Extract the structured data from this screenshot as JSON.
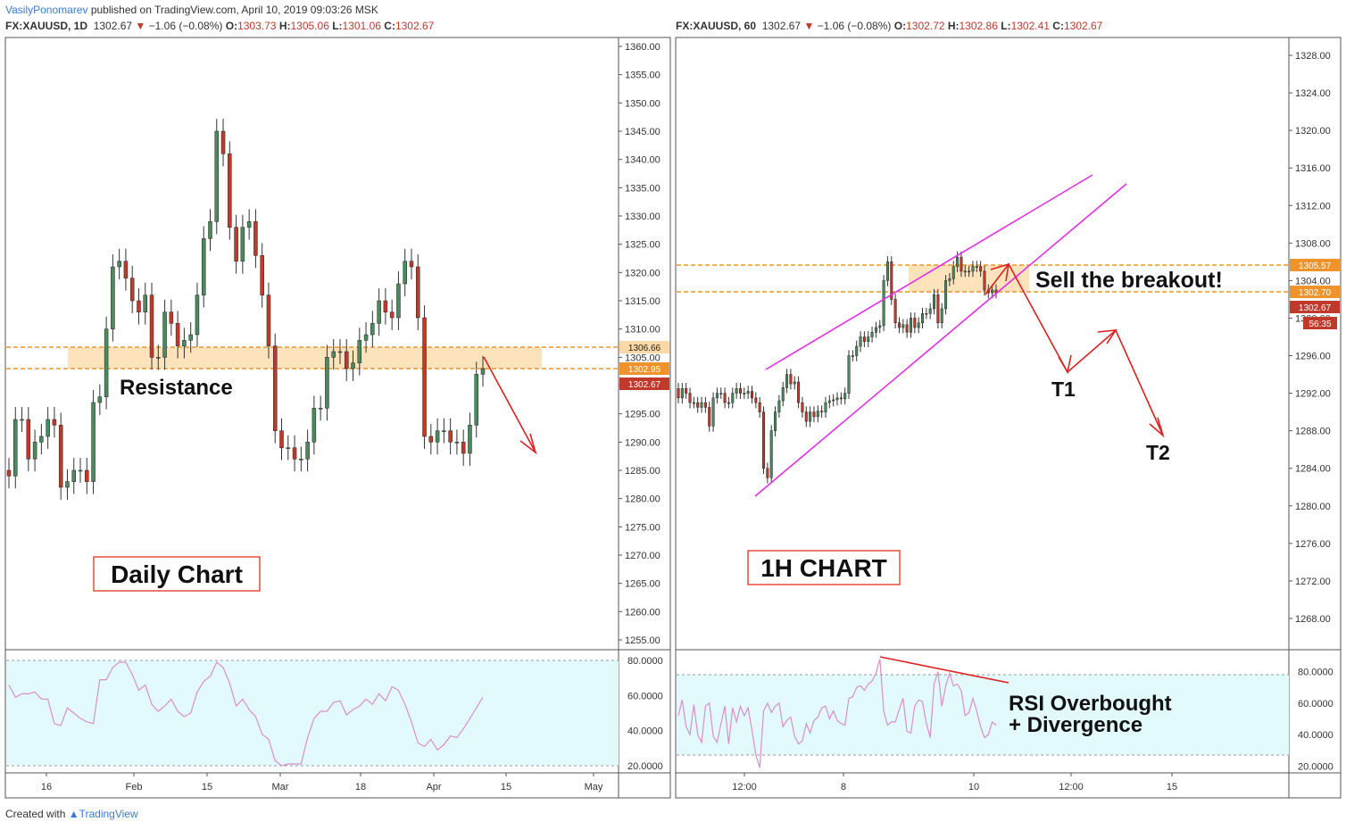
{
  "header": {
    "user": "VasilyPonomarev",
    "published": "published on TradingView.com, April 10, 2019 09:03:26 MSK"
  },
  "footer": {
    "created_with": "Created with",
    "brand": "TradingView"
  },
  "left": {
    "symbol": "FX:XAUUSD, 1D",
    "price": "1302.67",
    "change": "−1.06 (−0.08%)",
    "o_label": "O:",
    "o": "1303.73",
    "h_label": "H:",
    "h": "1305.06",
    "l_label": "L:",
    "l": "1301.06",
    "c_label": "C:",
    "c": "1302.67",
    "annotation_resistance": "Resistance",
    "annotation_box": "Daily Chart",
    "price_tags": [
      "1306.66",
      "1302.95",
      "1302.67"
    ]
  },
  "right": {
    "symbol": "FX:XAUUSD, 60",
    "price": "1302.67",
    "change": "−1.06 (−0.08%)",
    "o_label": "O:",
    "o": "1302.72",
    "h_label": "H:",
    "h": "1302.86",
    "l_label": "L:",
    "l": "1302.41",
    "c_label": "C:",
    "c": "1302.67",
    "annotation_sell": "Sell the breakout!",
    "annotation_t1": "T1",
    "annotation_t2": "T2",
    "annotation_box": "1H CHART",
    "annotation_rsi_1": "RSI Overbought",
    "annotation_rsi_2": "+ Divergence",
    "price_tags": [
      "1305.57",
      "1302.70",
      "1302.67",
      "56:35"
    ]
  },
  "colors": {
    "up": "#4a8a5c",
    "down": "#c0392b",
    "zone": "#fbd9a6",
    "dash": "#f0932b",
    "rsi": "#d98ecb",
    "rsi_bg": "#e3fafd",
    "channel": "#e62ee6",
    "arrow": "#e02020"
  },
  "chart_data": [
    {
      "type": "candlestick",
      "timeframe": "1D",
      "ylim": [
        1251,
        1362
      ],
      "y_ticks": [
        "1360.00",
        "1355.00",
        "1350.00",
        "1345.00",
        "1340.00",
        "1335.00",
        "1330.00",
        "1325.00",
        "1320.00",
        "1315.00",
        "1310.00",
        "1305.00",
        "1300.00",
        "1295.00",
        "1290.00",
        "1285.00",
        "1280.00",
        "1275.00",
        "1270.00",
        "1265.00",
        "1260.00",
        "1255.00"
      ],
      "x_ticks": [
        "16",
        "Feb",
        "15",
        "Mar",
        "18",
        "Apr",
        "15",
        "May"
      ],
      "close": [
        1284,
        1294,
        1294,
        1287,
        1290,
        1291,
        1294,
        1293,
        1282,
        1283,
        1285,
        1285,
        1283,
        1297,
        1298,
        1310,
        1321,
        1322,
        1319,
        1315,
        1313,
        1316,
        1305,
        1305,
        1313,
        1311,
        1307,
        1308,
        1309,
        1316,
        1326,
        1329,
        1345,
        1341,
        1328,
        1322,
        1328,
        1329,
        1323,
        1316,
        1307,
        1292,
        1289,
        1289,
        1287,
        1287,
        1290,
        1296,
        1296,
        1305,
        1306,
        1306,
        1303,
        1304,
        1308,
        1309,
        1311,
        1315,
        1313,
        1312,
        1318,
        1322,
        1321,
        1312,
        1291,
        1290,
        1292,
        1292,
        1290,
        1290,
        1288,
        1293,
        1302,
        1303
      ],
      "rsi_ylim": [
        17,
        83
      ],
      "rsi_ticks": [
        "80.0000",
        "60.0000",
        "40.0000",
        "20.0000"
      ],
      "rsi_levels": [
        80,
        20
      ],
      "rsi": [
        66,
        59,
        61,
        61,
        62,
        58,
        58,
        44,
        43,
        53,
        50,
        47,
        45,
        44,
        69,
        69,
        76,
        79,
        79,
        72,
        63,
        66,
        55,
        51,
        54,
        58,
        51,
        48,
        50,
        62,
        68,
        71,
        79,
        76,
        67,
        54,
        58,
        52,
        48,
        38,
        35,
        23,
        20,
        21,
        21,
        21,
        36,
        47,
        51,
        51,
        56,
        57,
        49,
        52,
        54,
        58,
        55,
        61,
        57,
        65,
        63,
        55,
        45,
        33,
        31,
        35,
        29,
        32,
        37,
        36,
        41,
        47,
        53,
        59
      ]
    },
    {
      "type": "candlestick",
      "timeframe": "60",
      "ylim": [
        1265,
        1329.5
      ],
      "y_ticks": [
        "1328.00",
        "1324.00",
        "1320.00",
        "1316.00",
        "1312.00",
        "1308.00",
        "1304.00",
        "1300.00",
        "1296.00",
        "1292.00",
        "1288.00",
        "1284.00",
        "1280.00",
        "1276.00",
        "1272.00",
        "1268.00"
      ],
      "x_ticks": [
        "12:00",
        "8",
        "10",
        "12:00",
        "15"
      ],
      "close": [
        1291.5,
        1292.5,
        1292,
        1291,
        1291,
        1290.5,
        1291,
        1290.5,
        1288.5,
        1291.5,
        1292,
        1292,
        1291,
        1291,
        1292,
        1292.5,
        1292,
        1292,
        1292.2,
        1291.5,
        1291,
        1290,
        1284,
        1283,
        1288,
        1290,
        1291.2,
        1292.6,
        1294,
        1293,
        1293.2,
        1291,
        1290,
        1289,
        1290,
        1289.5,
        1290.1,
        1290,
        1291,
        1291.2,
        1291.3,
        1291.5,
        1291.4,
        1292,
        1296,
        1296,
        1297,
        1298,
        1297.5,
        1298,
        1298.5,
        1299,
        1299.2,
        1304,
        1306,
        1302,
        1299.5,
        1299,
        1299.3,
        1298.5,
        1300,
        1299,
        1299.5,
        1300.5,
        1300.5,
        1301,
        1302.5,
        1299.5,
        1301,
        1304,
        1304.2,
        1305.5,
        1306.5,
        1305,
        1305,
        1305,
        1305.5,
        1305.5,
        1305,
        1303,
        1302.7,
        1303,
        1302.7
      ],
      "rsi_ylim": [
        13,
        95
      ],
      "rsi_ticks": [
        "80.0000",
        "60.0000",
        "40.0000",
        "20.0000"
      ],
      "rsi_levels": [
        78,
        27
      ],
      "rsi": [
        52,
        62,
        45,
        40,
        59,
        40,
        35,
        58,
        60,
        39,
        35,
        47,
        58,
        34,
        57,
        48,
        58,
        52,
        57,
        43,
        27,
        19,
        55,
        60,
        54,
        58,
        60,
        45,
        49,
        51,
        39,
        34,
        36,
        47,
        41,
        49,
        51,
        57,
        58,
        50,
        55,
        49,
        47,
        46,
        63,
        64,
        70,
        71,
        68,
        72,
        74,
        79,
        88,
        55,
        46,
        48,
        48,
        56,
        63,
        42,
        41,
        58,
        62,
        61,
        47,
        38,
        72,
        80,
        58,
        71,
        79,
        71,
        72,
        68,
        52,
        54,
        63,
        55,
        45,
        38,
        40,
        48,
        46
      ]
    }
  ]
}
